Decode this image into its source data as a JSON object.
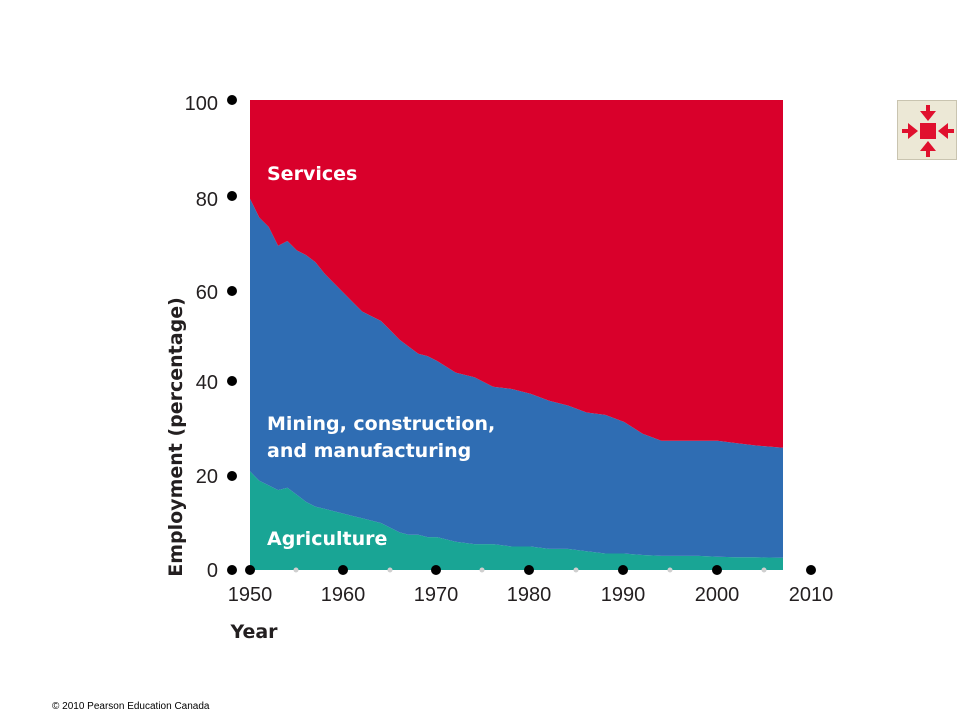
{
  "chart_data": {
    "type": "area",
    "stacked": true,
    "xlabel": "Year",
    "ylabel": "Employment (percentage)",
    "xlim": [
      1950,
      2010
    ],
    "ylim": [
      0,
      100
    ],
    "x_ticks": [
      "1950",
      "1960",
      "1970",
      "1980",
      "1990",
      "2000",
      "2010"
    ],
    "y_ticks": [
      "0",
      "20",
      "40",
      "60",
      "80",
      "100"
    ],
    "x": [
      1950,
      1951,
      1952,
      1953,
      1954,
      1955,
      1956,
      1957,
      1958,
      1959,
      1960,
      1961,
      1962,
      1963,
      1964,
      1965,
      1966,
      1967,
      1968,
      1969,
      1970,
      1972,
      1974,
      1976,
      1978,
      1980,
      1982,
      1984,
      1986,
      1988,
      1990,
      1992,
      1994,
      1996,
      1998,
      2000,
      2002,
      2004,
      2007
    ],
    "series": [
      {
        "name": "Agriculture",
        "color": "#19a595",
        "values": [
          21,
          19,
          18,
          17,
          17.5,
          16,
          14.5,
          13.5,
          13,
          12.5,
          12,
          11.5,
          11,
          10.5,
          10,
          9,
          8,
          7.5,
          7.5,
          7,
          7,
          6,
          5.5,
          5.5,
          5,
          5,
          4.5,
          4.5,
          4,
          3.5,
          3.5,
          3.2,
          3,
          3,
          3,
          2.8,
          2.7,
          2.7,
          2.6
        ]
      },
      {
        "name": "Mining, construction, and manufacturing",
        "color": "#2f6db3",
        "values": [
          58,
          56,
          55,
          52,
          52.5,
          52,
          52.5,
          52,
          50,
          48.5,
          47,
          45.5,
          44,
          43.5,
          43,
          42,
          41,
          40,
          38.5,
          38.5,
          37.5,
          36,
          35.5,
          33.5,
          33.5,
          32.5,
          31.5,
          30.5,
          29.5,
          29.5,
          28,
          25.8,
          24.5,
          24.5,
          24.5,
          24.7,
          24.3,
          23.8,
          23.4
        ]
      },
      {
        "name": "Services",
        "color": "#d9002b",
        "values": [
          21,
          25,
          27,
          31,
          30,
          32,
          33,
          34.5,
          37,
          39,
          41,
          43,
          45,
          46,
          47,
          49,
          51,
          52.5,
          54,
          54.5,
          55.5,
          58,
          59,
          61,
          61.5,
          62.5,
          64,
          65,
          66.5,
          67,
          68.5,
          71,
          72.5,
          72.5,
          72.5,
          72.5,
          73,
          73.5,
          74
        ]
      }
    ],
    "area_labels": [
      "Services",
      "Mining, construction,",
      "and manufacturing",
      "Agriculture"
    ]
  },
  "expand_icon": "expand-arrows-icon",
  "copyright": "© 2010 Pearson Education Canada"
}
